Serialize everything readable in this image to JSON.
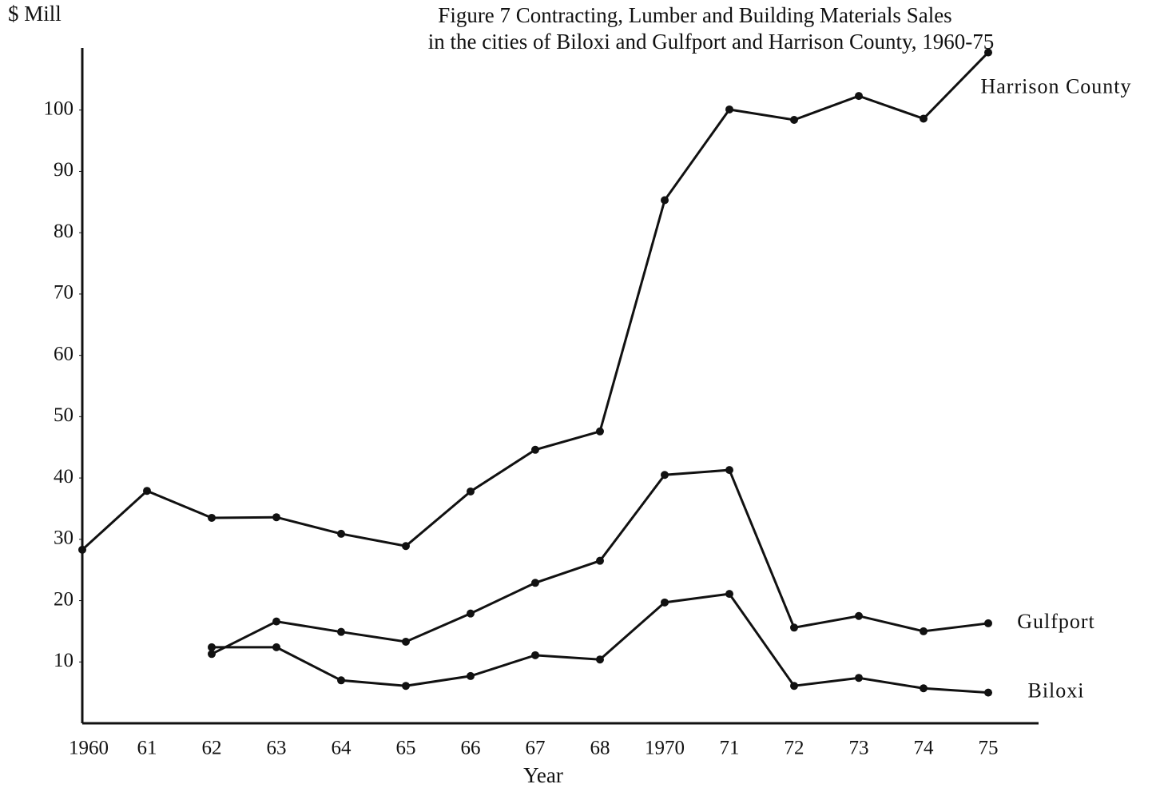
{
  "chart_data": {
    "type": "line",
    "title": "Figure 7 Contracting, Lumber and Building Materials Sales",
    "subtitle": "in the cities of Biloxi and Gulfport and Harrison County, 1960-75",
    "y_label": "$ Mill",
    "x_label": "Year",
    "categories": [
      "1960",
      "61",
      "62",
      "63",
      "64",
      "65",
      "66",
      "67",
      "68",
      "1970",
      "71",
      "72",
      "73",
      "74",
      "75"
    ],
    "series": [
      {
        "name": "Harrison County",
        "color": "#111111",
        "values": [
          28.3,
          37.9,
          33.5,
          33.6,
          30.9,
          28.9,
          37.8,
          44.6,
          47.6,
          85.3,
          100.1,
          98.4,
          102.3,
          98.6,
          109.4
        ]
      },
      {
        "name": "Gulfport",
        "color": "#111111",
        "values": [
          null,
          null,
          11.3,
          16.6,
          14.9,
          13.3,
          17.9,
          22.9,
          26.5,
          40.5,
          41.3,
          15.6,
          17.5,
          15.0,
          16.3
        ]
      },
      {
        "name": "Biloxi",
        "color": "#111111",
        "values": [
          null,
          null,
          12.4,
          12.4,
          7.0,
          6.1,
          7.7,
          11.1,
          10.4,
          19.7,
          21.1,
          6.1,
          7.4,
          5.7,
          5.0
        ]
      }
    ],
    "ylim": [
      0,
      110
    ],
    "yticks": [
      10,
      20,
      30,
      40,
      50,
      60,
      70,
      80,
      90,
      100
    ]
  }
}
